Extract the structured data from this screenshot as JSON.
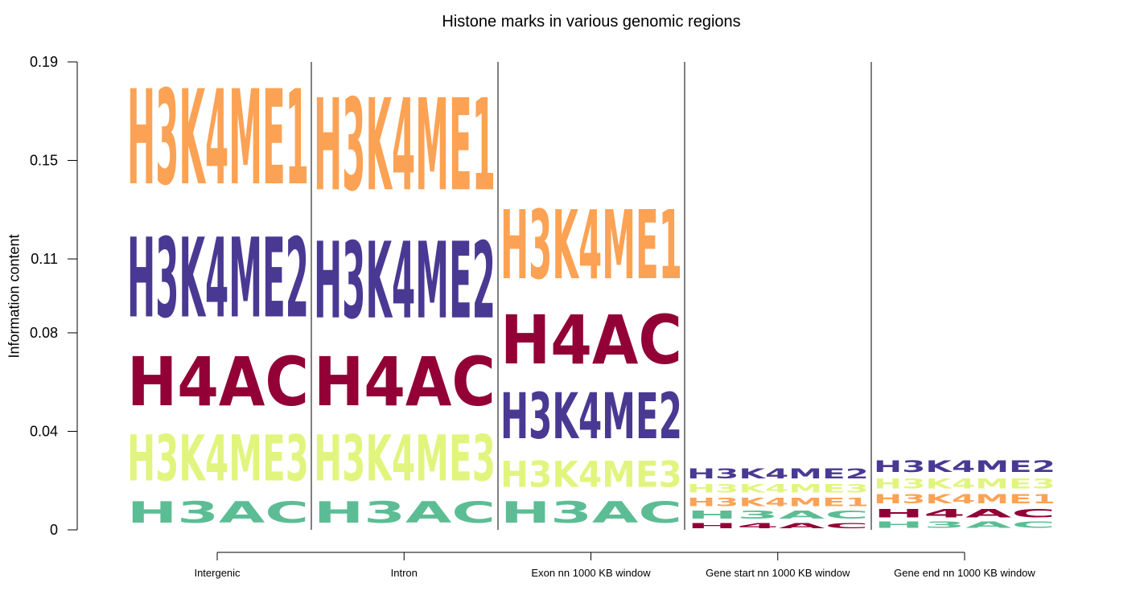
{
  "chart_data": {
    "type": "sequence-logo",
    "title": "Histone marks in various genomic regions",
    "xlabel": "",
    "ylabel": "Information content",
    "ylim": [
      0,
      0.19
    ],
    "y_ticks": [
      "0",
      "0.04",
      "0.08",
      "0.11",
      "0.15",
      "0.19"
    ],
    "y_tick_values": [
      0,
      0.04,
      0.08,
      0.11,
      0.15,
      0.19
    ],
    "colors": {
      "H3K4ME1": "#fca254",
      "H3K4ME2": "#4a3993",
      "H4AC": "#920035",
      "H3K4ME3": "#e1f57e",
      "H3AC": "#5cbd95"
    },
    "categories": [
      "Intergenic",
      "Intron",
      "Exon nn 1000 KB window",
      "Gene start nn 1000 KB window",
      "Gene end nn 1000 KB window"
    ],
    "stacks": [
      {
        "category": "Intergenic",
        "letters": [
          {
            "mark": "H3AC",
            "value": 0.014
          },
          {
            "mark": "H3K4ME3",
            "value": 0.03
          },
          {
            "mark": "H4AC",
            "value": 0.032
          },
          {
            "mark": "H3K4ME2",
            "value": 0.052
          },
          {
            "mark": "H3K4ME1",
            "value": 0.062
          }
        ]
      },
      {
        "category": "Intron",
        "letters": [
          {
            "mark": "H3AC",
            "value": 0.014
          },
          {
            "mark": "H3K4ME3",
            "value": 0.03
          },
          {
            "mark": "H4AC",
            "value": 0.032
          },
          {
            "mark": "H3K4ME2",
            "value": 0.05
          },
          {
            "mark": "H3K4ME1",
            "value": 0.06
          }
        ]
      },
      {
        "category": "Exon nn 1000 KB window",
        "letters": [
          {
            "mark": "H3AC",
            "value": 0.014
          },
          {
            "mark": "H3K4ME3",
            "value": 0.017
          },
          {
            "mark": "H3K4ME2",
            "value": 0.03
          },
          {
            "mark": "H4AC",
            "value": 0.032
          },
          {
            "mark": "H3K4ME1",
            "value": 0.045
          }
        ]
      },
      {
        "category": "Gene start nn 1000 KB window",
        "letters": [
          {
            "mark": "H4AC",
            "value": 0.0035
          },
          {
            "mark": "H3AC",
            "value": 0.005
          },
          {
            "mark": "H3K4ME1",
            "value": 0.0055
          },
          {
            "mark": "H3K4ME3",
            "value": 0.0055
          },
          {
            "mark": "H3K4ME2",
            "value": 0.0065
          }
        ]
      },
      {
        "category": "Gene end nn 1000 KB window",
        "letters": [
          {
            "mark": "H3AC",
            "value": 0.004
          },
          {
            "mark": "H4AC",
            "value": 0.0055
          },
          {
            "mark": "H3K4ME1",
            "value": 0.006
          },
          {
            "mark": "H3K4ME3",
            "value": 0.0065
          },
          {
            "mark": "H3K4ME2",
            "value": 0.0075
          }
        ]
      }
    ]
  }
}
